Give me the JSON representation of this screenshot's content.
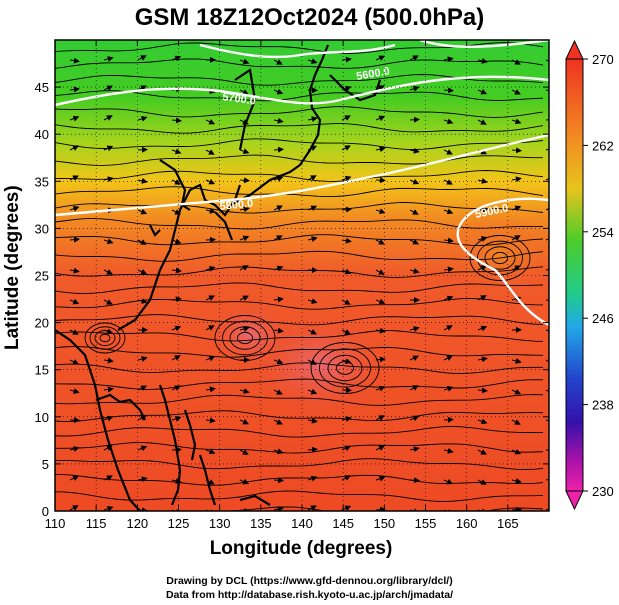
{
  "title": "GSM 18Z12Oct2024 (500.0hPa)",
  "xaxis": {
    "label": "Longitude (degrees)",
    "range": [
      110,
      170
    ],
    "ticks": [
      110,
      115,
      120,
      125,
      130,
      135,
      140,
      145,
      150,
      155,
      160,
      165
    ]
  },
  "yaxis": {
    "label": "Latitude  (degrees)",
    "range": [
      0,
      50
    ],
    "ticks": [
      0,
      5,
      10,
      15,
      20,
      25,
      30,
      35,
      40,
      45
    ]
  },
  "colorbar": {
    "min": 230,
    "max": 270,
    "labels": [
      "270",
      "262",
      "254",
      "246",
      "238",
      "230"
    ]
  },
  "contours": [
    {
      "label": "5700.0"
    },
    {
      "label": "5800.0"
    },
    {
      "label": "5900.0"
    },
    {
      "label": "5600.0"
    }
  ],
  "credits": {
    "line1": "Drawing by DCL (https://www.gfd-dennou.org/library/dcl/)",
    "line2": "Data from http://database.rish.kyoto-u.ac.jp/arch/jmadata/"
  }
}
